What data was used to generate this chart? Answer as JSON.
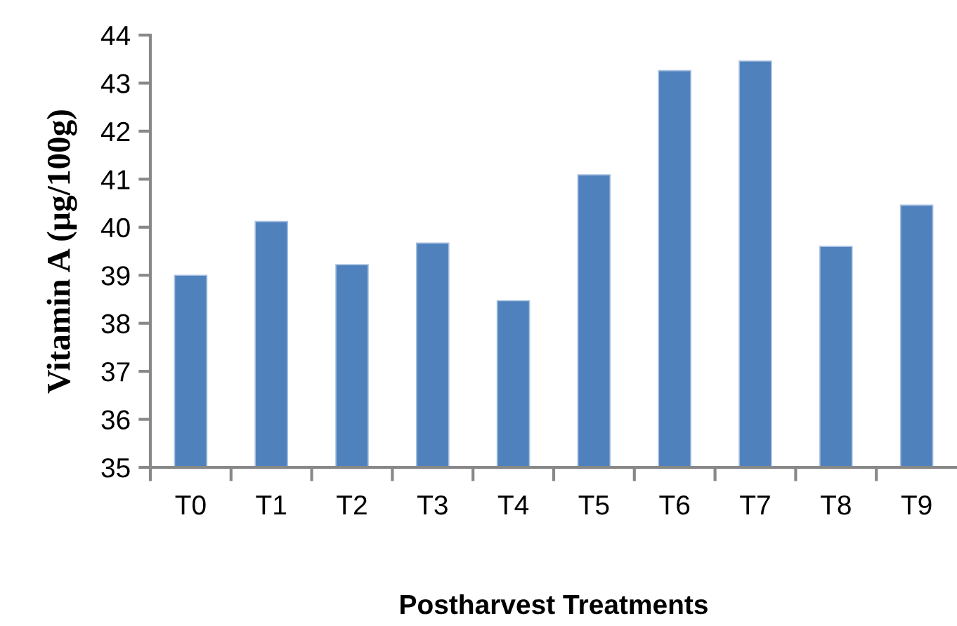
{
  "chart_data": {
    "type": "bar",
    "xlabel": "Postharvest Treatments",
    "ylabel": "Vitamin A (µg/100g)",
    "categories": [
      "T0",
      "T1",
      "T2",
      "T3",
      "T4",
      "T5",
      "T6",
      "T7",
      "T8",
      "T9"
    ],
    "values": [
      39.0,
      40.12,
      39.22,
      39.67,
      38.47,
      41.09,
      43.26,
      43.46,
      39.6,
      40.46
    ],
    "color": "#4f81bd",
    "ylim": [
      35,
      44
    ],
    "yticks": [
      35,
      36,
      37,
      38,
      39,
      40,
      41,
      42,
      43,
      44
    ],
    "grid": false,
    "legend": false
  }
}
